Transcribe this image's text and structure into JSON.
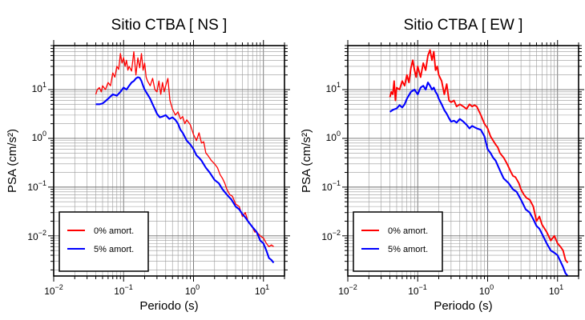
{
  "chart_data": [
    {
      "type": "line",
      "title": "Sitio CTBA [ NS ]",
      "xlabel": "Periodo (s)",
      "ylabel": "PSA (cm/s²)",
      "x_scale": "log",
      "y_scale": "log",
      "xlim": [
        0.01,
        20
      ],
      "ylim": [
        0.0015,
        80
      ],
      "x_ticks": [
        {
          "base": "10",
          "exp": "−2"
        },
        {
          "base": "10",
          "exp": "−1"
        },
        {
          "base": "10",
          "exp": "0"
        },
        {
          "base": "10",
          "exp": "1"
        }
      ],
      "y_ticks": [
        {
          "base": "10",
          "exp": "−2"
        },
        {
          "base": "10",
          "exp": "−1"
        },
        {
          "base": "10",
          "exp": "0"
        },
        {
          "base": "10",
          "exp": "1"
        }
      ],
      "grid": true,
      "legend_position": "bottom-left",
      "series": [
        {
          "name": "0% amort.",
          "color": "#ff0000",
          "x": [
            0.04,
            0.042,
            0.045,
            0.048,
            0.05,
            0.055,
            0.06,
            0.065,
            0.07,
            0.075,
            0.08,
            0.085,
            0.09,
            0.095,
            0.1,
            0.105,
            0.11,
            0.115,
            0.12,
            0.13,
            0.14,
            0.15,
            0.16,
            0.17,
            0.18,
            0.19,
            0.2,
            0.21,
            0.22,
            0.24,
            0.26,
            0.28,
            0.3,
            0.32,
            0.34,
            0.36,
            0.38,
            0.4,
            0.43,
            0.46,
            0.5,
            0.55,
            0.6,
            0.65,
            0.7,
            0.75,
            0.8,
            0.9,
            1.0,
            1.1,
            1.2,
            1.3,
            1.4,
            1.5,
            1.6,
            1.8,
            2.0,
            2.2,
            2.4,
            2.6,
            2.8,
            3.0,
            3.3,
            3.6,
            4.0,
            4.5,
            5.0,
            5.5,
            6.0,
            6.5,
            7.0,
            7.5,
            8.0,
            9.0,
            10,
            11,
            12,
            13,
            14
          ],
          "y": [
            8,
            10,
            11,
            9,
            12,
            10,
            14,
            12,
            22,
            18,
            30,
            26,
            55,
            35,
            45,
            30,
            40,
            25,
            30,
            24,
            60,
            20,
            45,
            28,
            55,
            25,
            35,
            18,
            15,
            12,
            17,
            10,
            9,
            15,
            8,
            14,
            9,
            12,
            17,
            6,
            4,
            3,
            3.5,
            2.5,
            2.8,
            2,
            2.4,
            1.9,
            1.2,
            0.9,
            1.3,
            0.8,
            0.85,
            0.5,
            0.45,
            0.35,
            0.3,
            0.25,
            0.18,
            0.15,
            0.12,
            0.09,
            0.07,
            0.065,
            0.045,
            0.04,
            0.025,
            0.03,
            0.02,
            0.017,
            0.015,
            0.012,
            0.012,
            0.01,
            0.009,
            0.007,
            0.006,
            0.0065,
            0.006
          ]
        },
        {
          "name": "5% amort.",
          "color": "#0000ff",
          "x": [
            0.04,
            0.045,
            0.05,
            0.055,
            0.06,
            0.07,
            0.08,
            0.09,
            0.1,
            0.11,
            0.12,
            0.13,
            0.14,
            0.15,
            0.16,
            0.17,
            0.18,
            0.19,
            0.2,
            0.22,
            0.24,
            0.26,
            0.28,
            0.3,
            0.33,
            0.36,
            0.4,
            0.45,
            0.5,
            0.55,
            0.6,
            0.65,
            0.7,
            0.8,
            0.9,
            1.0,
            1.1,
            1.2,
            1.3,
            1.5,
            1.7,
            2.0,
            2.3,
            2.6,
            3.0,
            3.5,
            4.0,
            4.5,
            5.0,
            5.5,
            6.0,
            7.0,
            8.0,
            9.0,
            10,
            11,
            12,
            13,
            14
          ],
          "y": [
            5,
            5,
            5.2,
            5.8,
            6.5,
            8,
            7.5,
            9,
            11,
            10,
            12,
            14,
            15,
            17,
            18,
            17.5,
            15,
            12,
            10,
            8,
            6.5,
            5,
            4,
            3.2,
            2.7,
            2.8,
            3,
            2.5,
            2.7,
            2.4,
            2,
            1.5,
            1.3,
            0.9,
            0.75,
            0.6,
            0.45,
            0.4,
            0.35,
            0.25,
            0.2,
            0.14,
            0.12,
            0.09,
            0.07,
            0.055,
            0.04,
            0.035,
            0.028,
            0.024,
            0.02,
            0.015,
            0.012,
            0.008,
            0.007,
            0.005,
            0.0035,
            0.0032,
            0.0028
          ]
        }
      ]
    },
    {
      "type": "line",
      "title": "Sitio CTBA [ EW ]",
      "xlabel": "Periodo (s)",
      "ylabel": "PSA (cm/s²)",
      "x_scale": "log",
      "y_scale": "log",
      "xlim": [
        0.01,
        20
      ],
      "ylim": [
        0.0015,
        80
      ],
      "x_ticks": [
        {
          "base": "10",
          "exp": "−2"
        },
        {
          "base": "10",
          "exp": "−1"
        },
        {
          "base": "10",
          "exp": "0"
        },
        {
          "base": "10",
          "exp": "1"
        }
      ],
      "y_ticks": [
        {
          "base": "10",
          "exp": "−2"
        },
        {
          "base": "10",
          "exp": "−1"
        },
        {
          "base": "10",
          "exp": "0"
        },
        {
          "base": "10",
          "exp": "1"
        }
      ],
      "grid": true,
      "legend_position": "bottom-left",
      "series": [
        {
          "name": "0% amort.",
          "color": "#ff0000",
          "x": [
            0.04,
            0.042,
            0.044,
            0.046,
            0.048,
            0.05,
            0.055,
            0.06,
            0.065,
            0.07,
            0.075,
            0.08,
            0.085,
            0.09,
            0.095,
            0.1,
            0.11,
            0.12,
            0.13,
            0.14,
            0.15,
            0.16,
            0.17,
            0.18,
            0.19,
            0.2,
            0.22,
            0.24,
            0.26,
            0.28,
            0.3,
            0.33,
            0.36,
            0.4,
            0.45,
            0.5,
            0.55,
            0.6,
            0.65,
            0.7,
            0.8,
            0.9,
            1.0,
            1.1,
            1.2,
            1.3,
            1.4,
            1.5,
            1.7,
            1.9,
            2.1,
            2.3,
            2.5,
            2.8,
            3.0,
            3.3,
            3.6,
            4.0,
            4.5,
            5.0,
            5.5,
            6.0,
            7.0,
            8.0,
            9.0,
            10,
            11,
            12,
            13,
            14
          ],
          "y": [
            7,
            9,
            8,
            15,
            6,
            11,
            10,
            15,
            12,
            20,
            14,
            28,
            40,
            25,
            18,
            30,
            18,
            35,
            25,
            50,
            65,
            40,
            60,
            25,
            30,
            20,
            15,
            8,
            13,
            6,
            5.5,
            6,
            4.5,
            5,
            4.5,
            4,
            5,
            4.5,
            4.8,
            4.5,
            3,
            2,
            1.6,
            1.1,
            0.9,
            0.75,
            0.65,
            0.5,
            0.4,
            0.3,
            0.22,
            0.17,
            0.16,
            0.12,
            0.09,
            0.07,
            0.06,
            0.055,
            0.04,
            0.02,
            0.025,
            0.017,
            0.012,
            0.008,
            0.01,
            0.007,
            0.006,
            0.005,
            0.0032,
            0.0028
          ]
        },
        {
          "name": "5% amort.",
          "color": "#0000ff",
          "x": [
            0.04,
            0.045,
            0.05,
            0.055,
            0.06,
            0.065,
            0.07,
            0.08,
            0.09,
            0.1,
            0.11,
            0.12,
            0.13,
            0.14,
            0.15,
            0.16,
            0.17,
            0.18,
            0.19,
            0.2,
            0.22,
            0.24,
            0.26,
            0.28,
            0.3,
            0.33,
            0.36,
            0.4,
            0.45,
            0.5,
            0.55,
            0.6,
            0.7,
            0.8,
            0.9,
            1.0,
            1.1,
            1.2,
            1.3,
            1.5,
            1.7,
            2.0,
            2.3,
            2.6,
            3.0,
            3.5,
            4.0,
            4.5,
            5.0,
            5.5,
            6.0,
            7.0,
            8.0,
            9.0,
            10,
            11,
            12,
            13,
            14
          ],
          "y": [
            3.5,
            3.9,
            4.1,
            4.8,
            4.3,
            5,
            6.5,
            9,
            10,
            8,
            11,
            12,
            10,
            14,
            12,
            10,
            11,
            9,
            8,
            6.5,
            5,
            3.8,
            3.2,
            2.6,
            2.2,
            2.3,
            2.1,
            2.5,
            2.2,
            1.9,
            1.6,
            1.8,
            1.6,
            1.5,
            1.1,
            0.6,
            0.5,
            0.4,
            0.35,
            0.22,
            0.15,
            0.12,
            0.09,
            0.08,
            0.055,
            0.035,
            0.03,
            0.022,
            0.016,
            0.014,
            0.011,
            0.007,
            0.005,
            0.0045,
            0.004,
            0.003,
            0.0023,
            0.0017,
            0.0015
          ]
        }
      ]
    }
  ]
}
